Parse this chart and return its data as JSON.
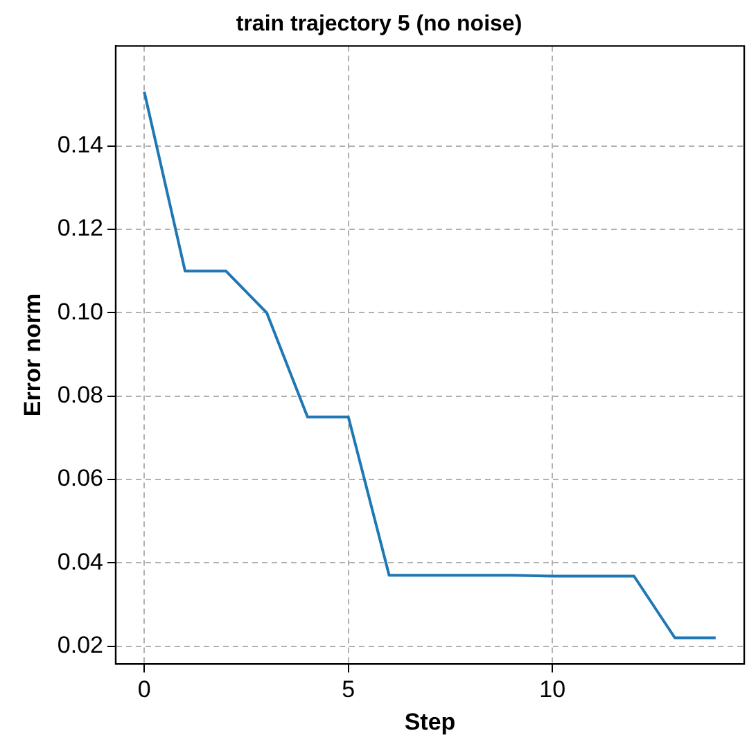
{
  "chart_data": {
    "type": "line",
    "title": "train trajectory 5 (no noise)",
    "xlabel": "Step",
    "ylabel": "Error norm",
    "x": [
      0,
      1,
      2,
      3,
      4,
      5,
      6,
      7,
      8,
      9,
      10,
      11,
      12,
      13,
      14
    ],
    "series": [
      {
        "color": "#1f77b4",
        "values": [
          0.153,
          0.11,
          0.11,
          0.1,
          0.075,
          0.075,
          0.037,
          0.037,
          0.037,
          0.037,
          0.0368,
          0.0368,
          0.0368,
          0.022,
          0.022
        ]
      }
    ],
    "xlim": [
      -0.7,
      14.7
    ],
    "ylim": [
      0.0157,
      0.164
    ],
    "xticks": [
      0,
      5,
      10
    ],
    "yticks": [
      0.02,
      0.04,
      0.06,
      0.08,
      {
        "value": 0.1,
        "label": "0.10"
      },
      0.12,
      0.14
    ],
    "grid": true,
    "legend": false,
    "marker": "none",
    "line_style": "solid"
  }
}
